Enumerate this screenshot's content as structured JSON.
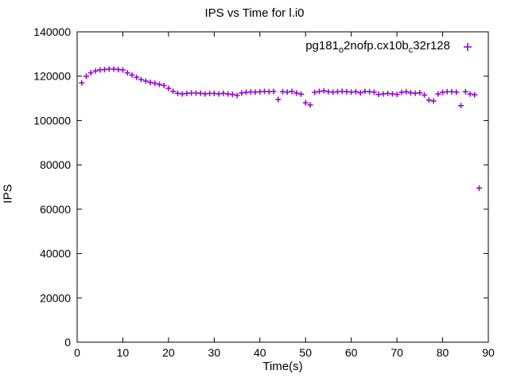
{
  "title": "IPS vs Time for l.i0",
  "legend": {
    "parts": {
      "p0": "pg181",
      "p1": "o",
      "p2": "2nofp.cx10b",
      "p3": "c",
      "p4": "32r128"
    },
    "full_name": "pg181_o2nofp.cx10b_c32r128"
  },
  "colors": {
    "points": "#9400d3",
    "axis": "#000000",
    "text": "#000000",
    "background": "#ffffff"
  },
  "chart_data": {
    "type": "scatter",
    "title": "IPS vs Time for l.i0",
    "xlabel": "Time(s)",
    "ylabel": "IPS",
    "xlim": [
      0,
      90
    ],
    "ylim": [
      0,
      140000
    ],
    "xticks": [
      0,
      10,
      20,
      30,
      40,
      50,
      60,
      70,
      80,
      90
    ],
    "yticks": [
      0,
      20000,
      40000,
      60000,
      80000,
      100000,
      120000,
      140000
    ],
    "grid": false,
    "legend_position": "top-right",
    "marker": "plus",
    "series": [
      {
        "name": "pg181_o2nofp.cx10b_c32r128",
        "color": "#9400d3",
        "x": [
          1,
          2,
          3,
          4,
          5,
          6,
          7,
          8,
          9,
          10,
          11,
          12,
          13,
          14,
          15,
          16,
          17,
          18,
          19,
          20,
          21,
          22,
          23,
          24,
          25,
          26,
          27,
          28,
          29,
          30,
          31,
          32,
          33,
          34,
          35,
          36,
          37,
          38,
          39,
          40,
          41,
          42,
          43,
          44,
          45,
          46,
          47,
          48,
          49,
          50,
          51,
          52,
          53,
          54,
          55,
          56,
          57,
          58,
          59,
          60,
          61,
          62,
          63,
          64,
          65,
          66,
          67,
          68,
          69,
          70,
          71,
          72,
          73,
          74,
          75,
          76,
          77,
          78,
          79,
          80,
          81,
          82,
          83,
          84,
          85,
          86,
          87,
          88
        ],
        "y": [
          117000,
          120000,
          121500,
          122300,
          122800,
          123000,
          123200,
          123200,
          123000,
          122800,
          121500,
          120500,
          119500,
          118500,
          117800,
          117200,
          116800,
          116300,
          115800,
          114500,
          113200,
          112300,
          112000,
          112200,
          112400,
          112400,
          112300,
          112000,
          112200,
          112200,
          112000,
          112300,
          112000,
          111800,
          111300,
          112400,
          112700,
          112900,
          112800,
          113000,
          113100,
          113000,
          113100,
          109500,
          113000,
          112800,
          113100,
          112400,
          111900,
          108000,
          107000,
          112700,
          113100,
          113400,
          113000,
          112800,
          113000,
          113200,
          113000,
          112800,
          113000,
          112500,
          113100,
          113000,
          112800,
          111800,
          112000,
          112200,
          112000,
          111800,
          112700,
          113000,
          112500,
          112300,
          112500,
          111500,
          109200,
          108800,
          112000,
          112700,
          113000,
          113000,
          112800,
          106700,
          113000,
          112000,
          111600,
          69500
        ]
      }
    ]
  }
}
